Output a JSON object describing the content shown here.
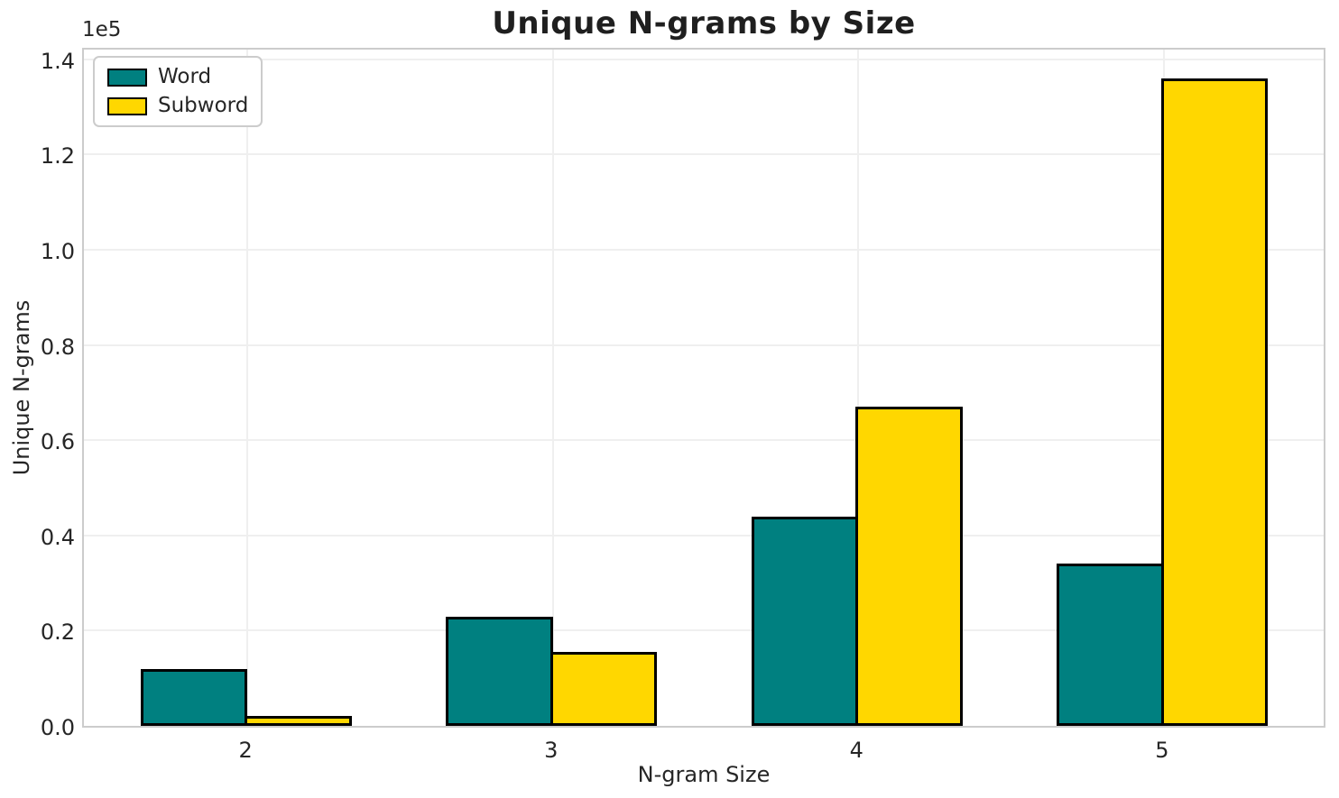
{
  "chart_data": {
    "type": "bar",
    "title": "Unique N-grams by Size",
    "xlabel": "N-gram Size",
    "ylabel": "Unique N-grams",
    "offset_text": "1e5",
    "categories": [
      "2",
      "3",
      "4",
      "5"
    ],
    "x_positions": [
      2,
      3,
      4,
      5
    ],
    "series": [
      {
        "name": "Word",
        "color": "#008080",
        "values": [
          12000,
          23000,
          44000,
          34000
        ]
      },
      {
        "name": "Subword",
        "color": "#FFD700",
        "values": [
          2000,
          15500,
          67000,
          136000
        ]
      }
    ],
    "bar_edge_color": "#000000",
    "bar_width": 0.35,
    "y_ticks": [
      0,
      20000,
      40000,
      60000,
      80000,
      100000,
      120000,
      140000
    ],
    "y_tick_labels": [
      "0.0",
      "0.2",
      "0.4",
      "0.6",
      "0.8",
      "1.0",
      "1.2",
      "1.4"
    ],
    "ylim": [
      0,
      142800
    ],
    "xlim": [
      1.465,
      5.535
    ],
    "grid": true,
    "legend_position": "upper left",
    "style": {
      "grid_color": "#efefef",
      "spine_color": "#cccccc",
      "text_color": "#262626",
      "background": "#ffffff"
    }
  }
}
